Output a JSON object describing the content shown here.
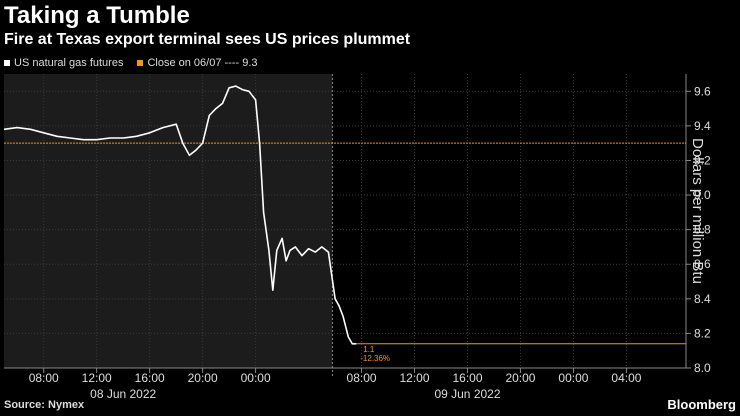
{
  "chart_data": {
    "type": "line",
    "title": "Taking a Tumble",
    "subtitle": "Fire at Texas export terminal sees US prices plummet",
    "ylabel": "Dollars per million Btu",
    "ylim": [
      8.0,
      9.7
    ],
    "yticks": [
      "9.6",
      "9.4",
      "9.2",
      "9.0",
      "8.8",
      "8.6",
      "8.4",
      "8.2",
      "8.0"
    ],
    "ytick_values": [
      9.6,
      9.4,
      9.2,
      9.0,
      8.8,
      8.6,
      8.4,
      8.2,
      8.0
    ],
    "xticks": [
      "08:00",
      "12:00",
      "16:00",
      "20:00",
      "00:00",
      "08:00",
      "12:00",
      "16:00",
      "20:00",
      "00:00",
      "04:00"
    ],
    "xtick_hours": [
      8,
      12,
      16,
      20,
      24,
      32,
      36,
      40,
      44,
      48,
      52
    ],
    "xdate_labels": [
      {
        "label": "08 Jun 2022",
        "hour": 14
      },
      {
        "label": "09 Jun 2022",
        "hour": 40
      }
    ],
    "xlim_hours": [
      5,
      56.5
    ],
    "session_break_hour": 29.8,
    "legend": [
      {
        "name": "US natural gas futures",
        "color": "#ffffff"
      },
      {
        "name": "Close on 06/07 ---- 9.3",
        "color": "#f7931a"
      }
    ],
    "reference_line": {
      "value": 9.3,
      "color": "#f7931a"
    },
    "last_value_line": {
      "value": 8.14,
      "color": "#f7931a"
    },
    "annotation": {
      "value_text": "1.1",
      "change_text": "-12.36%"
    },
    "series": [
      {
        "color": "#ffffff",
        "hours": [
          5,
          6,
          7,
          8,
          9,
          10,
          11,
          12,
          13,
          14,
          15,
          16,
          17,
          18,
          18.5,
          19,
          19.5,
          20,
          20.5,
          21,
          21.5,
          22,
          22.5,
          23,
          23.5,
          24,
          24.3,
          24.6,
          25,
          25.3,
          25.6,
          26,
          26.3,
          26.6,
          27,
          27.5,
          28,
          28.5,
          29,
          29.5,
          30,
          30.3,
          30.6,
          31,
          31.3,
          31.6
        ],
        "values": [
          9.38,
          9.39,
          9.38,
          9.36,
          9.34,
          9.33,
          9.32,
          9.32,
          9.33,
          9.33,
          9.34,
          9.36,
          9.39,
          9.41,
          9.3,
          9.23,
          9.26,
          9.3,
          9.46,
          9.5,
          9.53,
          9.62,
          9.63,
          9.61,
          9.6,
          9.55,
          9.3,
          8.9,
          8.68,
          8.45,
          8.68,
          8.75,
          8.62,
          8.68,
          8.7,
          8.65,
          8.69,
          8.67,
          8.7,
          8.67,
          8.4,
          8.36,
          8.3,
          8.18,
          8.14,
          8.14
        ]
      }
    ]
  },
  "footer": {
    "source": "Source: Nymex",
    "brand": "Bloomberg"
  }
}
